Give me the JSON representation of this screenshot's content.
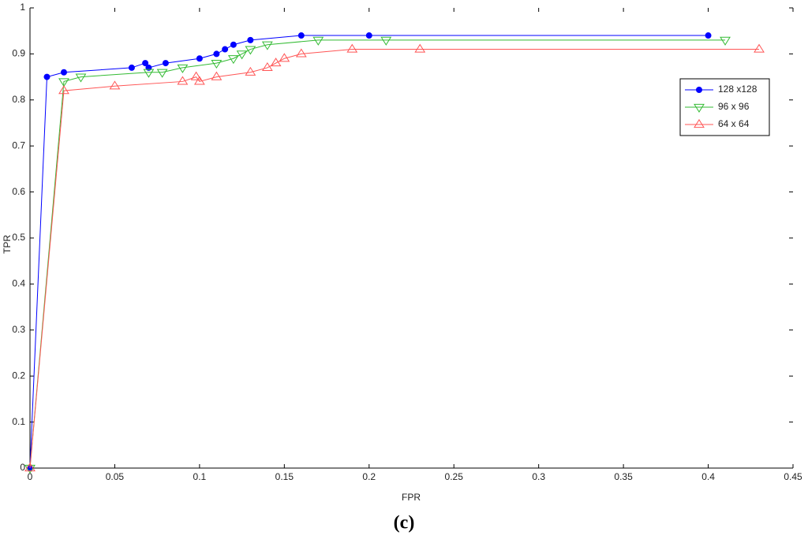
{
  "chart_data": {
    "type": "line",
    "xlabel": "FPR",
    "ylabel": "TPR",
    "caption": "(c)",
    "xlim": [
      0,
      0.45
    ],
    "xticks": [
      0,
      0.05,
      0.1,
      0.15,
      0.2,
      0.25,
      0.3,
      0.35,
      0.4,
      0.45
    ],
    "ylim": [
      0,
      1
    ],
    "yticks": [
      0,
      0.1,
      0.2,
      0.3,
      0.4,
      0.5,
      0.6,
      0.7,
      0.8,
      0.9,
      1
    ],
    "grid": false,
    "legend": "right",
    "series": [
      {
        "name": "128 x128",
        "color": "#0000ff",
        "marker": "o",
        "x": [
          0,
          0.01,
          0.02,
          0.06,
          0.068,
          0.07,
          0.08,
          0.1,
          0.11,
          0.115,
          0.12,
          0.13,
          0.16,
          0.2,
          0.4
        ],
        "values": [
          0,
          0.85,
          0.86,
          0.87,
          0.88,
          0.87,
          0.88,
          0.89,
          0.9,
          0.91,
          0.92,
          0.93,
          0.94,
          0.94,
          0.94
        ]
      },
      {
        "name": "96 x 96",
        "color": "#33bb33",
        "marker": "v",
        "x": [
          0,
          0.02,
          0.03,
          0.07,
          0.078,
          0.09,
          0.11,
          0.12,
          0.125,
          0.13,
          0.14,
          0.17,
          0.21,
          0.41
        ],
        "values": [
          0,
          0.84,
          0.85,
          0.86,
          0.86,
          0.87,
          0.88,
          0.89,
          0.9,
          0.91,
          0.92,
          0.93,
          0.93,
          0.93
        ]
      },
      {
        "name": "64 x 64",
        "color": "#ff5555",
        "marker": "^",
        "x": [
          0,
          0.02,
          0.05,
          0.09,
          0.098,
          0.1,
          0.11,
          0.13,
          0.14,
          0.145,
          0.15,
          0.16,
          0.19,
          0.23,
          0.43
        ],
        "values": [
          0,
          0.82,
          0.83,
          0.84,
          0.85,
          0.84,
          0.85,
          0.86,
          0.87,
          0.88,
          0.89,
          0.9,
          0.91,
          0.91,
          0.91
        ]
      }
    ]
  }
}
